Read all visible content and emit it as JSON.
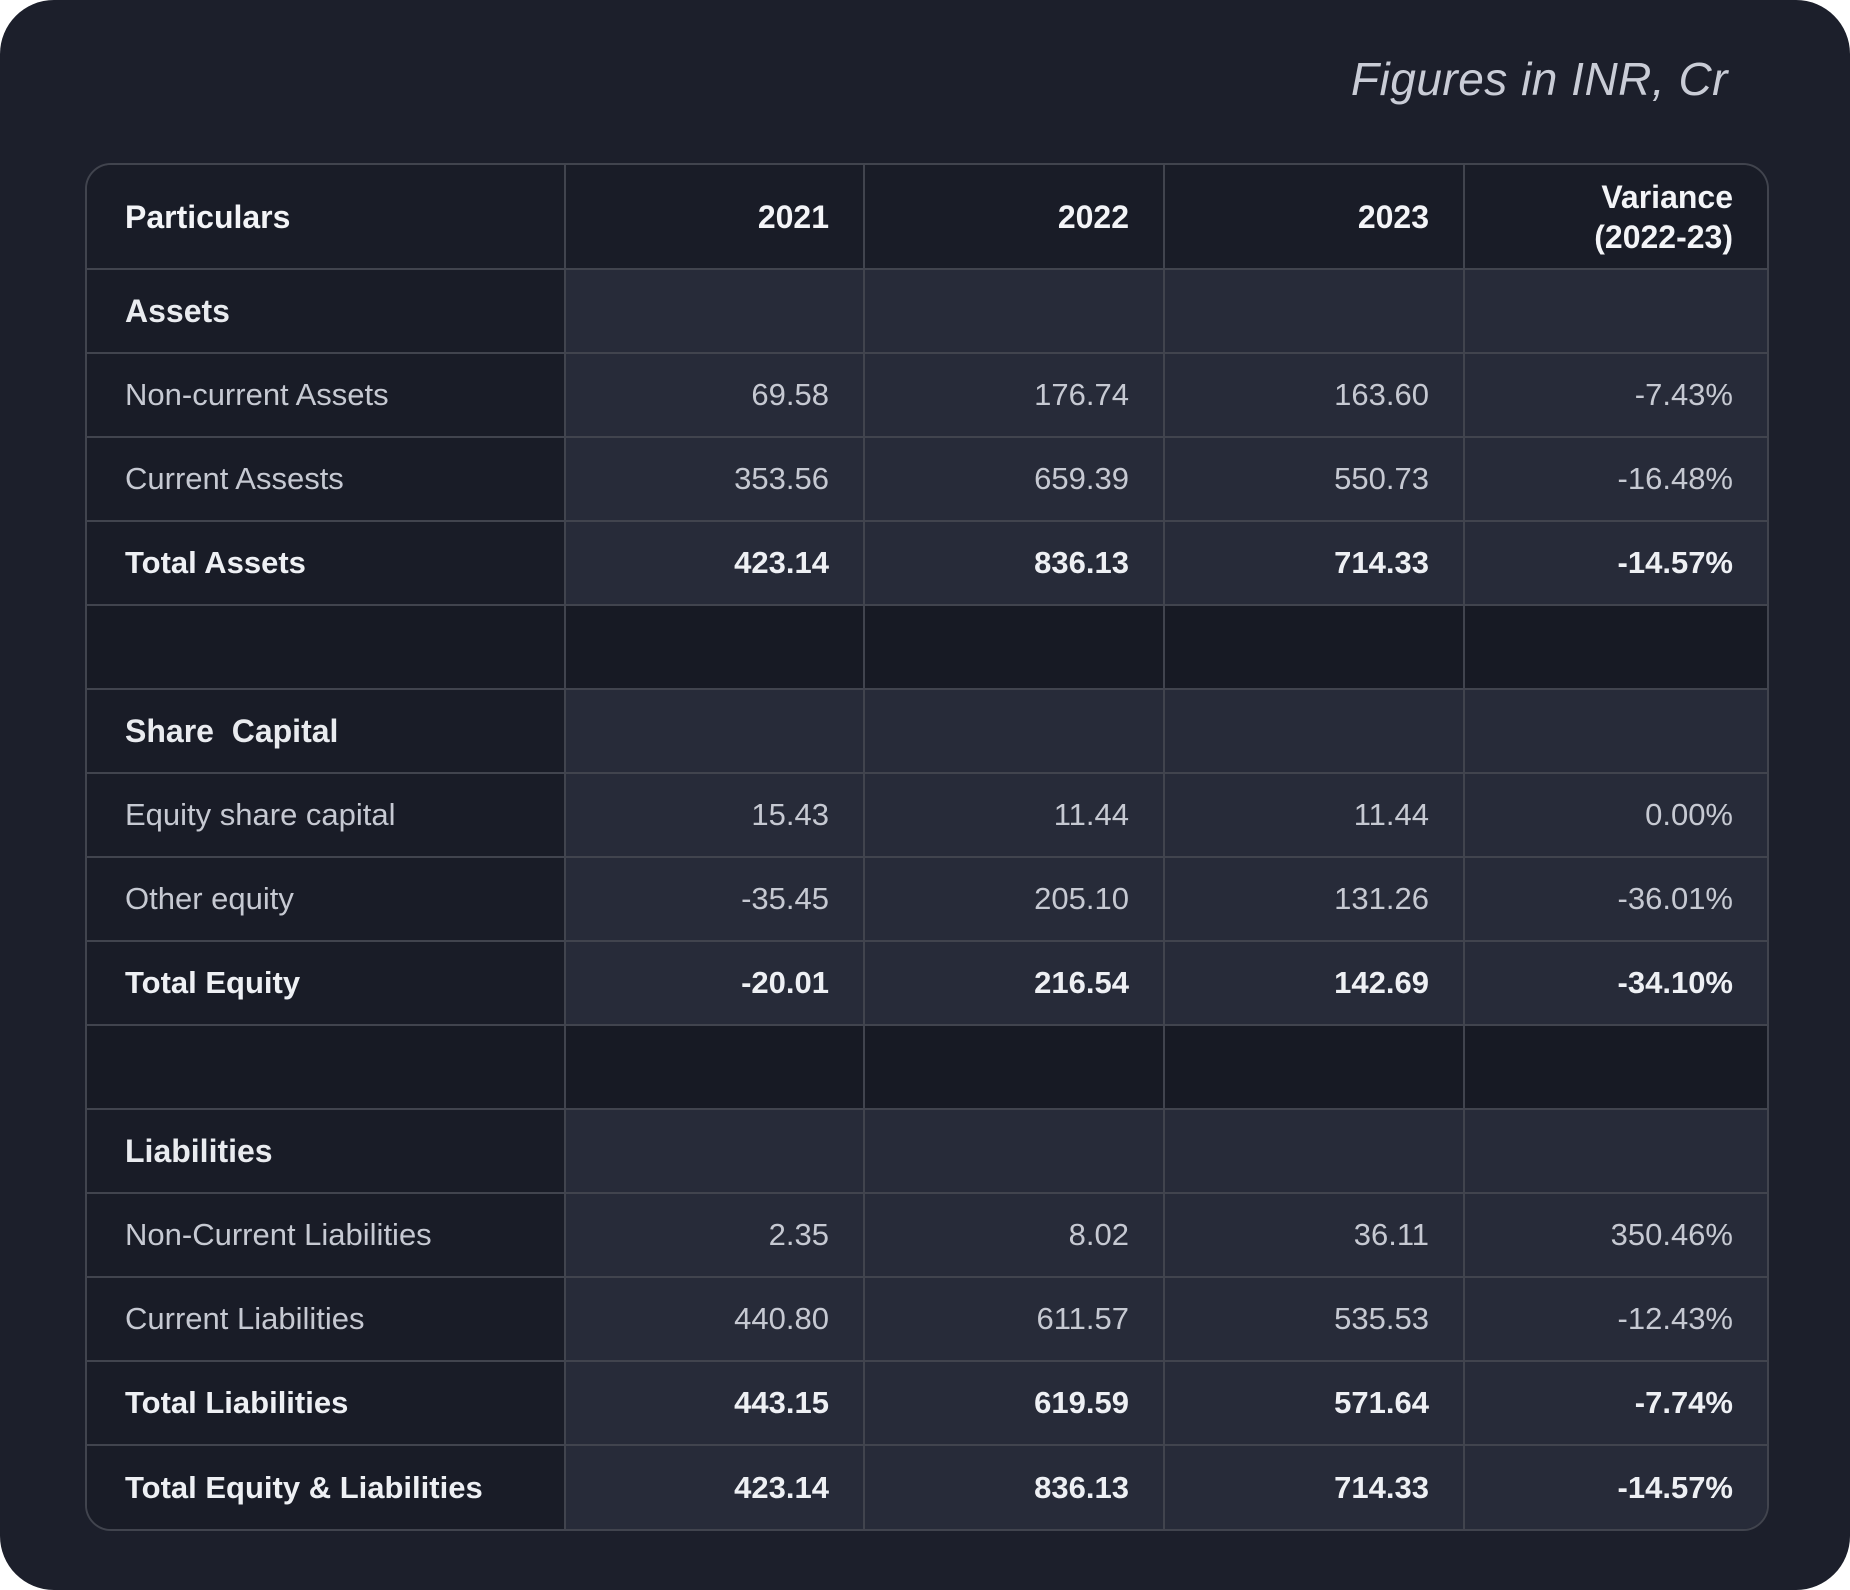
{
  "note": "Figures in INR, Cr",
  "headers": {
    "particulars": "Particulars",
    "y2021": "2021",
    "y2022": "2022",
    "y2023": "2023",
    "variance_line1": "Variance",
    "variance_line2": "(2022-23)"
  },
  "colors": {
    "card_background": "#1c1f2b",
    "dark_cell": "#191c27",
    "light_cell": "#272b39",
    "spacer_cell": "#171a24",
    "border": "#41444e",
    "heading_text": "#f3f4f7",
    "body_text": "#c6c9d2",
    "note_text": "#c9ccd6"
  },
  "chart_data": {
    "type": "table",
    "title": "Figures in INR, Cr",
    "columns": [
      "Particulars",
      "2021",
      "2022",
      "2023",
      "Variance (2022-23)"
    ],
    "rows": [
      {
        "type": "section",
        "label": "Assets",
        "values": [
          "",
          "",
          "",
          ""
        ]
      },
      {
        "type": "data",
        "label": "Non-current Assets",
        "values": [
          "69.58",
          "176.74",
          "163.60",
          "-7.43%"
        ]
      },
      {
        "type": "data",
        "label": "Current Assests",
        "values": [
          "353.56",
          "659.39",
          "550.73",
          "-16.48%"
        ]
      },
      {
        "type": "total",
        "label": "Total Assets",
        "values": [
          "423.14",
          "836.13",
          "714.33",
          "-14.57%"
        ]
      },
      {
        "type": "spacer",
        "label": "",
        "values": [
          "",
          "",
          "",
          ""
        ]
      },
      {
        "type": "section",
        "label": "Share  Capital",
        "values": [
          "",
          "",
          "",
          ""
        ]
      },
      {
        "type": "data",
        "label": "Equity share capital",
        "values": [
          "15.43",
          "11.44",
          "11.44",
          "0.00%"
        ]
      },
      {
        "type": "data",
        "label": "Other equity",
        "values": [
          "-35.45",
          "205.10",
          "131.26",
          "-36.01%"
        ]
      },
      {
        "type": "total",
        "label": "Total Equity",
        "values": [
          "-20.01",
          "216.54",
          "142.69",
          "-34.10%"
        ]
      },
      {
        "type": "spacer",
        "label": "",
        "values": [
          "",
          "",
          "",
          ""
        ]
      },
      {
        "type": "section",
        "label": "Liabilities",
        "values": [
          "",
          "",
          "",
          ""
        ]
      },
      {
        "type": "data",
        "label": "Non-Current Liabilities",
        "values": [
          "2.35",
          "8.02",
          "36.11",
          "350.46%"
        ]
      },
      {
        "type": "data",
        "label": "Current Liabilities",
        "values": [
          "440.80",
          "611.57",
          "535.53",
          "-12.43%"
        ]
      },
      {
        "type": "total",
        "label": "Total Liabilities",
        "values": [
          "443.15",
          "619.59",
          "571.64",
          "-7.74%"
        ]
      },
      {
        "type": "total",
        "label": "Total Equity & Liabilities",
        "values": [
          "423.14",
          "836.13",
          "714.33",
          "-14.57%"
        ]
      }
    ]
  }
}
